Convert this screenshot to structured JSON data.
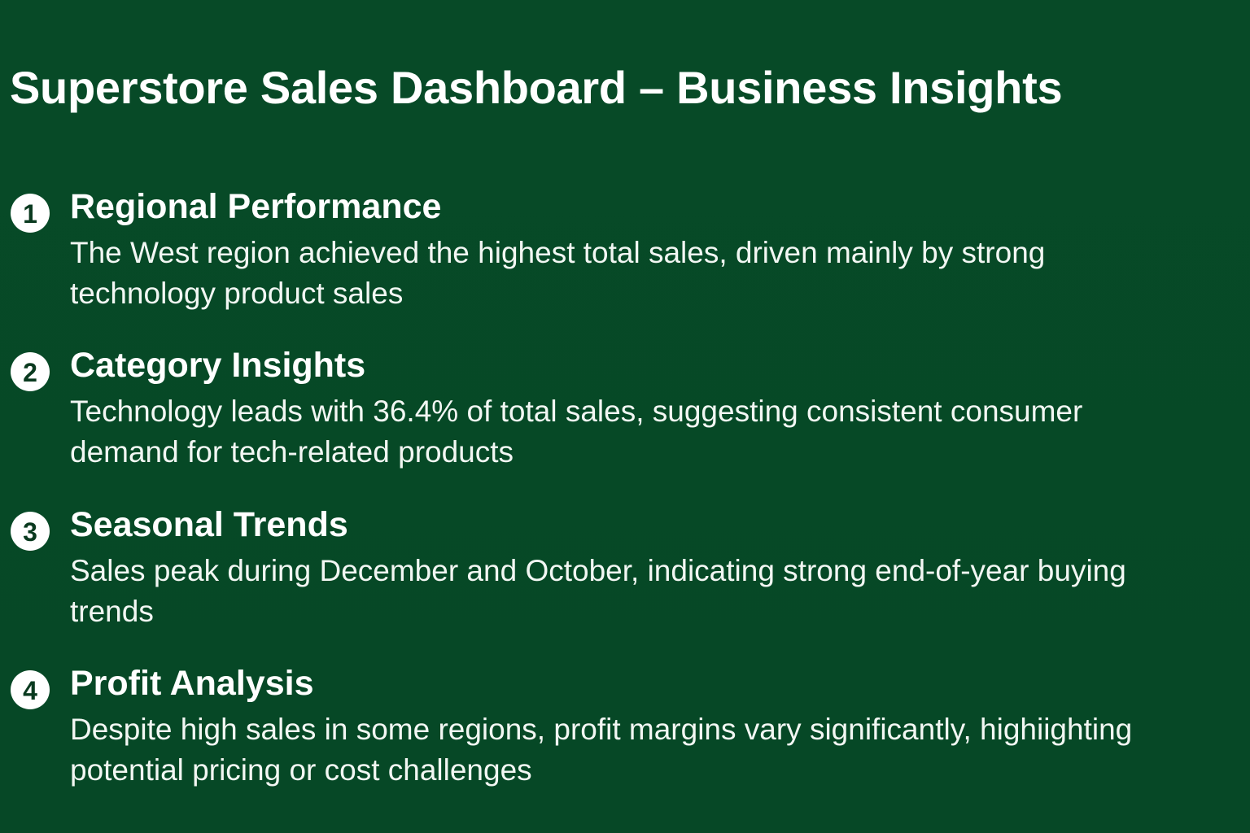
{
  "title": "Superstore Sales Dashboard – Business Insights",
  "insights": [
    {
      "number": "1",
      "heading": "Regional Performance",
      "text": "The West region achieved the highest total sales, driven mainly by strong technology product sales"
    },
    {
      "number": "2",
      "heading": "Category Insights",
      "text": "Technology leads with 36.4% of total sales, suggesting consistent consumer demand for tech-related products"
    },
    {
      "number": "3",
      "heading": "Seasonal Trends",
      "text": "Sales peak during December and October, indicating strong end-of-year buying trends"
    },
    {
      "number": "4",
      "heading": "Profit Analysis",
      "text": "Despite high sales in some regions, profit margins vary significantly, highiighting potential pricing or cost challenges"
    }
  ],
  "colors": {
    "background": "#074a27",
    "text": "#ffffff",
    "badge": "#ffffff",
    "badge_text": "#0a3a1f"
  }
}
